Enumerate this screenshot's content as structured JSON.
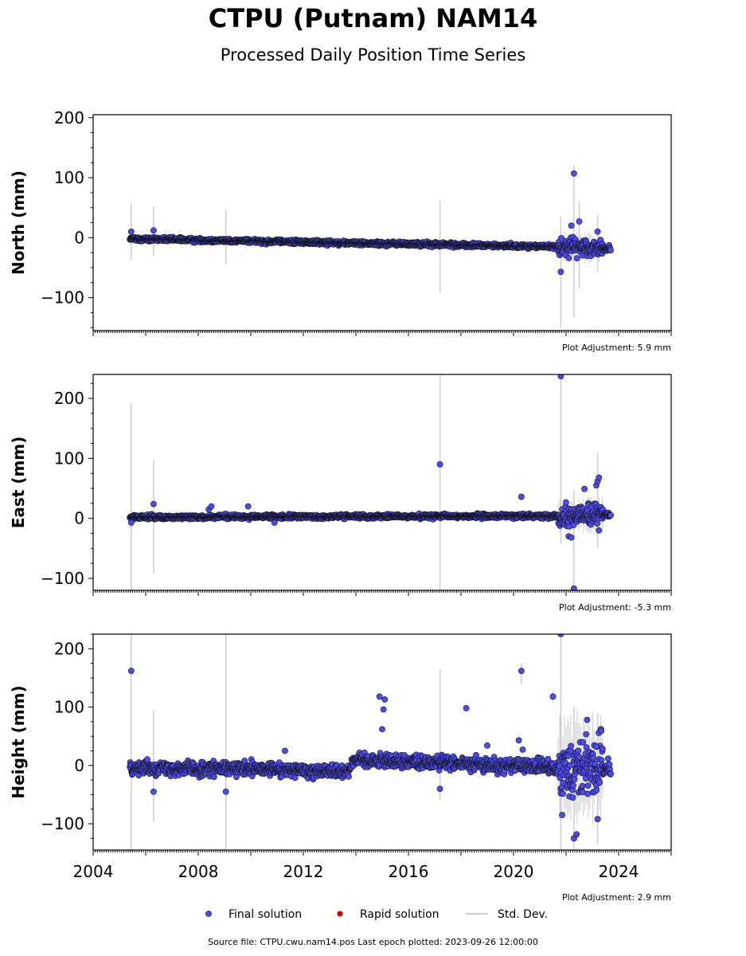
{
  "title": "CTPU (Putnam) NAM14",
  "subtitle": "Processed Daily Position Time Series",
  "footer": "Source file: CTPU.cwu.nam14.pos  Last epoch plotted: 2023-09-26 12:00:00",
  "legend": [
    {
      "key": "final",
      "label": "Final solution",
      "color": "#4b4bf0"
    },
    {
      "key": "rapid",
      "label": "Rapid solution",
      "color": "#e00000"
    },
    {
      "key": "std",
      "label": "Std. Dev.",
      "color": "#cccccc"
    }
  ],
  "colors": {
    "final_fill": "#4b4bf0",
    "final_edge": "#111111",
    "std_dev": "#cccccc"
  },
  "chart_data": [
    {
      "type": "scatter",
      "component": "north",
      "ylabel": "North (mm)",
      "xlim": [
        2004,
        2026
      ],
      "ylim": [
        -155,
        205
      ],
      "yticks": [
        -100,
        0,
        100,
        200
      ],
      "xticks": [
        2004,
        2008,
        2012,
        2016,
        2020,
        2024
      ],
      "adjustment": "Plot Adjustment: 5.9 mm",
      "trend": {
        "x": [
          2005.4,
          2021.5,
          2023.7
        ],
        "y": [
          -2,
          -15,
          -18
        ]
      },
      "scatter": 3,
      "dense_region": {
        "x": [
          2021.7,
          2023.4
        ],
        "scatter": 12
      },
      "outliers": [
        {
          "x": 2005.45,
          "y": 10
        },
        {
          "x": 2006.3,
          "y": 12
        },
        {
          "x": 2021.8,
          "y": -57
        },
        {
          "x": 2022.2,
          "y": 20
        },
        {
          "x": 2022.3,
          "y": 107
        },
        {
          "x": 2022.5,
          "y": 27
        },
        {
          "x": 2023.2,
          "y": 10
        }
      ],
      "std_bars": [
        {
          "x": 2005.45,
          "lo": -38,
          "hi": 58
        },
        {
          "x": 2006.3,
          "lo": -30,
          "hi": 52
        },
        {
          "x": 2009.05,
          "lo": -45,
          "hi": 47
        },
        {
          "x": 2017.2,
          "lo": -92,
          "hi": 62
        },
        {
          "x": 2021.8,
          "lo": -150,
          "hi": 35
        },
        {
          "x": 2022.3,
          "lo": -133,
          "hi": 120
        },
        {
          "x": 2022.5,
          "lo": -85,
          "hi": 60
        },
        {
          "x": 2023.2,
          "lo": -57,
          "hi": 38
        }
      ]
    },
    {
      "type": "scatter",
      "component": "east",
      "ylabel": "East (mm)",
      "xlim": [
        2004,
        2026
      ],
      "ylim": [
        -120,
        240
      ],
      "yticks": [
        -100,
        0,
        100,
        200
      ],
      "xticks": [
        2004,
        2008,
        2012,
        2016,
        2020,
        2024
      ],
      "adjustment": "Plot Adjustment: -5.3 mm",
      "trend": {
        "x": [
          2005.4,
          2021.5,
          2023.7
        ],
        "y": [
          2,
          4,
          6
        ]
      },
      "scatter": 3,
      "dense_region": {
        "x": [
          2021.7,
          2023.4
        ],
        "scatter": 14
      },
      "outliers": [
        {
          "x": 2005.45,
          "y": -7
        },
        {
          "x": 2006.3,
          "y": 24
        },
        {
          "x": 2008.4,
          "y": 15
        },
        {
          "x": 2008.5,
          "y": 20
        },
        {
          "x": 2009.9,
          "y": 20
        },
        {
          "x": 2010.9,
          "y": -7
        },
        {
          "x": 2017.2,
          "y": 90
        },
        {
          "x": 2020.3,
          "y": 36
        },
        {
          "x": 2021.8,
          "y": 237
        },
        {
          "x": 2022.1,
          "y": -30
        },
        {
          "x": 2022.2,
          "y": -32
        },
        {
          "x": 2022.3,
          "y": -117
        },
        {
          "x": 2022.7,
          "y": 49
        },
        {
          "x": 2023.15,
          "y": 55
        },
        {
          "x": 2023.2,
          "y": 62
        },
        {
          "x": 2023.25,
          "y": 68
        },
        {
          "x": 2023.25,
          "y": -20
        }
      ],
      "std_bars": [
        {
          "x": 2005.45,
          "lo": -120,
          "hi": 192
        },
        {
          "x": 2006.3,
          "lo": -92,
          "hi": 98
        },
        {
          "x": 2017.2,
          "lo": -120,
          "hi": 240
        },
        {
          "x": 2021.8,
          "lo": -43,
          "hi": 240
        },
        {
          "x": 2022.3,
          "lo": -120,
          "hi": 47
        },
        {
          "x": 2023.2,
          "lo": -50,
          "hi": 110
        }
      ]
    },
    {
      "type": "scatter",
      "component": "height",
      "ylabel": "Height (mm)",
      "xlim": [
        2004,
        2026
      ],
      "ylim": [
        -145,
        225
      ],
      "yticks": [
        -100,
        0,
        100,
        200
      ],
      "xticks": [
        2004,
        2008,
        2012,
        2016,
        2020,
        2024
      ],
      "xticklabels": [
        "2004",
        "2008",
        "2012",
        "2016",
        "2020",
        "2024"
      ],
      "adjustment": "Plot Adjustment: 2.9 mm",
      "trend": {
        "x": [
          2005.4,
          2013.7,
          2013.9,
          2021.5,
          2023.7
        ],
        "y": [
          -3,
          -10,
          10,
          -3,
          -5
        ]
      },
      "scatter": 10,
      "dense_region": {
        "x": [
          2021.7,
          2023.4
        ],
        "scatter": 45
      },
      "outliers": [
        {
          "x": 2005.45,
          "y": 162
        },
        {
          "x": 2006.3,
          "y": -45
        },
        {
          "x": 2009.05,
          "y": -45
        },
        {
          "x": 2011.3,
          "y": 25
        },
        {
          "x": 2014.9,
          "y": 118
        },
        {
          "x": 2015.1,
          "y": 113
        },
        {
          "x": 2015.05,
          "y": 96
        },
        {
          "x": 2015.0,
          "y": 62
        },
        {
          "x": 2018.2,
          "y": 98
        },
        {
          "x": 2019.0,
          "y": 34
        },
        {
          "x": 2020.2,
          "y": 43
        },
        {
          "x": 2020.3,
          "y": 162
        },
        {
          "x": 2020.35,
          "y": 27
        },
        {
          "x": 2021.5,
          "y": 118
        },
        {
          "x": 2021.8,
          "y": 225
        },
        {
          "x": 2021.85,
          "y": -85
        },
        {
          "x": 2022.3,
          "y": -125
        },
        {
          "x": 2022.4,
          "y": -118
        },
        {
          "x": 2022.8,
          "y": 78
        },
        {
          "x": 2023.2,
          "y": -92
        },
        {
          "x": 2023.15,
          "y": 32
        },
        {
          "x": 2017.2,
          "y": -40
        }
      ],
      "std_bars": [
        {
          "x": 2005.45,
          "lo": -145,
          "hi": 225
        },
        {
          "x": 2006.3,
          "lo": -95,
          "hi": 95
        },
        {
          "x": 2009.05,
          "lo": -145,
          "hi": 225
        },
        {
          "x": 2017.2,
          "lo": -60,
          "hi": 165
        },
        {
          "x": 2020.3,
          "lo": 140,
          "hi": 175
        },
        {
          "x": 2021.5,
          "lo": 108,
          "hi": 128
        },
        {
          "x": 2021.8,
          "lo": -145,
          "hi": 225
        },
        {
          "x": 2022.3,
          "lo": -145,
          "hi": 100
        },
        {
          "x": 2023.2,
          "lo": -135,
          "hi": 90
        }
      ]
    }
  ]
}
